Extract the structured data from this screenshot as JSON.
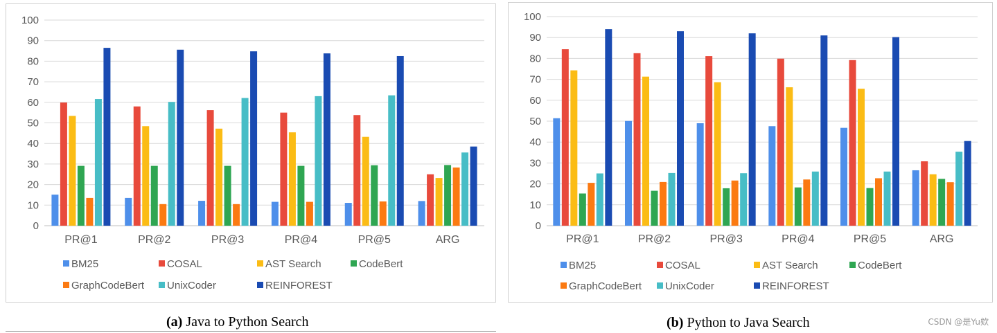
{
  "chart_data": [
    {
      "type": "bar",
      "caption_label": "(a)",
      "caption_text": "Java to Python Search",
      "categories": [
        "PR@1",
        "PR@2",
        "PR@3",
        "PR@4",
        "PR@5",
        "ARG"
      ],
      "ylim": [
        0,
        100
      ],
      "yticks": [
        0,
        10,
        20,
        30,
        40,
        50,
        60,
        70,
        80,
        90,
        100
      ],
      "grid": true,
      "legend_position": "bottom",
      "series": [
        {
          "name": "BM25",
          "color": "#4e8fea",
          "values": [
            15.1,
            13.5,
            12.1,
            11.6,
            11.1,
            12.0
          ]
        },
        {
          "name": "COSAL",
          "color": "#e84a3c",
          "values": [
            59.9,
            58.0,
            56.2,
            55.0,
            53.8,
            25.0
          ]
        },
        {
          "name": "AST Search",
          "color": "#fbbc15",
          "values": [
            53.4,
            48.4,
            47.2,
            45.4,
            43.2,
            23.2
          ]
        },
        {
          "name": "CodeBert",
          "color": "#2fa652",
          "values": [
            29.1,
            29.1,
            29.1,
            29.1,
            29.4,
            29.5
          ]
        },
        {
          "name": "GraphCodeBert",
          "color": "#fb7a12",
          "values": [
            13.5,
            10.5,
            10.5,
            11.6,
            11.8,
            28.3
          ]
        },
        {
          "name": "UnixCoder",
          "color": "#47bdc6",
          "values": [
            61.6,
            60.2,
            62.1,
            63.0,
            63.4,
            35.6
          ]
        },
        {
          "name": "REINFOREST",
          "color": "#1a4bb2",
          "values": [
            86.5,
            85.6,
            84.8,
            83.8,
            82.5,
            38.5
          ]
        }
      ]
    },
    {
      "type": "bar",
      "caption_label": "(b)",
      "caption_text": "Python to Java Search",
      "categories": [
        "PR@1",
        "PR@2",
        "PR@3",
        "PR@4",
        "PR@5",
        "ARG"
      ],
      "ylim": [
        0,
        100
      ],
      "yticks": [
        0,
        10,
        20,
        30,
        40,
        50,
        60,
        70,
        80,
        90,
        100
      ],
      "grid": true,
      "legend_position": "bottom",
      "series": [
        {
          "name": "BM25",
          "color": "#4e8fea",
          "values": [
            51.4,
            50.1,
            49.0,
            47.6,
            46.8,
            26.5
          ]
        },
        {
          "name": "COSAL",
          "color": "#e84a3c",
          "values": [
            84.4,
            82.5,
            81.1,
            79.9,
            79.2,
            30.8
          ]
        },
        {
          "name": "AST Search",
          "color": "#fbbc15",
          "values": [
            74.3,
            71.3,
            68.6,
            66.2,
            65.5,
            24.6
          ]
        },
        {
          "name": "CodeBert",
          "color": "#2fa652",
          "values": [
            15.4,
            16.7,
            17.9,
            18.3,
            18.0,
            22.4
          ]
        },
        {
          "name": "GraphCodeBert",
          "color": "#fb7a12",
          "values": [
            20.5,
            20.9,
            21.6,
            22.1,
            22.7,
            20.8
          ]
        },
        {
          "name": "UnixCoder",
          "color": "#47bdc6",
          "values": [
            25.0,
            25.2,
            25.1,
            25.9,
            25.9,
            35.4
          ]
        },
        {
          "name": "REINFOREST",
          "color": "#1a4bb2",
          "values": [
            94.0,
            93.0,
            92.0,
            91.0,
            90.2,
            40.5
          ]
        }
      ]
    }
  ],
  "watermark": "CSDN @是Yu欸"
}
